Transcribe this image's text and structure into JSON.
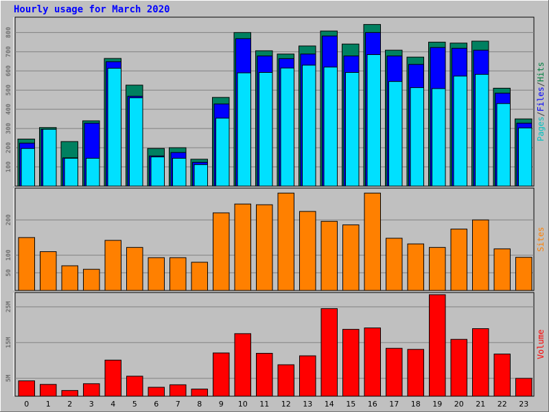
{
  "chart_data": {
    "title": "Hourly usage for March 2020",
    "x": [
      "0",
      "1",
      "2",
      "3",
      "4",
      "5",
      "6",
      "7",
      "8",
      "9",
      "10",
      "11",
      "12",
      "13",
      "14",
      "15",
      "16",
      "17",
      "18",
      "19",
      "20",
      "21",
      "22",
      "23"
    ],
    "panels": [
      {
        "type": "bar",
        "name": "hits-files-pages",
        "ylim": [
          0,
          880
        ],
        "yticks": [
          100,
          200,
          300,
          400,
          500,
          600,
          700,
          800
        ],
        "ytick_labels": [
          "100",
          "200",
          "300",
          "400",
          "500",
          "600",
          "700",
          "800"
        ],
        "ylabel_parts": [
          {
            "text": "Pages",
            "color": "#00c0c0"
          },
          {
            "text": "/",
            "color": "#404040"
          },
          {
            "text": "Files",
            "color": "#0000ff"
          },
          {
            "text": "/",
            "color": "#404040"
          },
          {
            "text": "Hits",
            "color": "#008040"
          }
        ],
        "series": [
          {
            "name": "Hits",
            "color": "#008060",
            "values": [
              245,
              305,
              232,
              340,
              665,
              526,
              196,
              200,
              140,
              462,
              800,
              705,
              688,
              730,
              808,
              740,
              842,
              708,
              672,
              750,
              745,
              755,
              510,
              350
            ]
          },
          {
            "name": "Files",
            "color": "#0000ff",
            "values": [
              224,
              296,
              147,
              328,
              648,
              468,
              157,
              175,
              124,
              428,
              768,
              678,
              664,
              688,
              782,
              678,
              800,
              678,
              634,
              722,
              718,
              708,
              484,
              328
            ]
          },
          {
            "name": "Pages",
            "color": "#00e0ff",
            "values": [
              196,
              296,
              145,
              145,
              614,
              460,
              152,
              145,
              112,
              354,
              590,
              592,
              615,
              630,
              620,
              592,
              685,
              545,
              513,
              508,
              573,
              582,
              430,
              303
            ]
          }
        ]
      },
      {
        "type": "bar",
        "name": "sites",
        "ylim": [
          0,
          290
        ],
        "yticks": [
          50,
          100,
          200
        ],
        "ytick_labels": [
          "50",
          "100",
          "200"
        ],
        "ylabel_parts": [
          {
            "text": "Sites",
            "color": "#ff8000"
          }
        ],
        "series": [
          {
            "name": "Sites",
            "color": "#ff8000",
            "values": [
              150,
              110,
              70,
              60,
              142,
              122,
              93,
              93,
              80,
              220,
              245,
              243,
              276,
              224,
              196,
              186,
              276,
              148,
              132,
              122,
              174,
              200,
              118,
              94
            ]
          }
        ]
      },
      {
        "type": "bar",
        "name": "volume",
        "ylim": [
          0,
          29
        ],
        "yticks": [
          5,
          15,
          25
        ],
        "ytick_labels": [
          "5M",
          "15M",
          "25M"
        ],
        "ylabel_parts": [
          {
            "text": "Volume",
            "color": "#ff0000"
          }
        ],
        "series": [
          {
            "name": "Volume",
            "color": "#ff0000",
            "values": [
              4.3,
              3.3,
              1.6,
              3.5,
              10.1,
              5.6,
              2.5,
              3.2,
              2.0,
              12.1,
              17.5,
              12.0,
              8.8,
              11.3,
              24.5,
              18.7,
              19.1,
              13.4,
              13.1,
              28.4,
              15.9,
              18.9,
              11.8,
              5.0
            ]
          }
        ]
      }
    ]
  }
}
